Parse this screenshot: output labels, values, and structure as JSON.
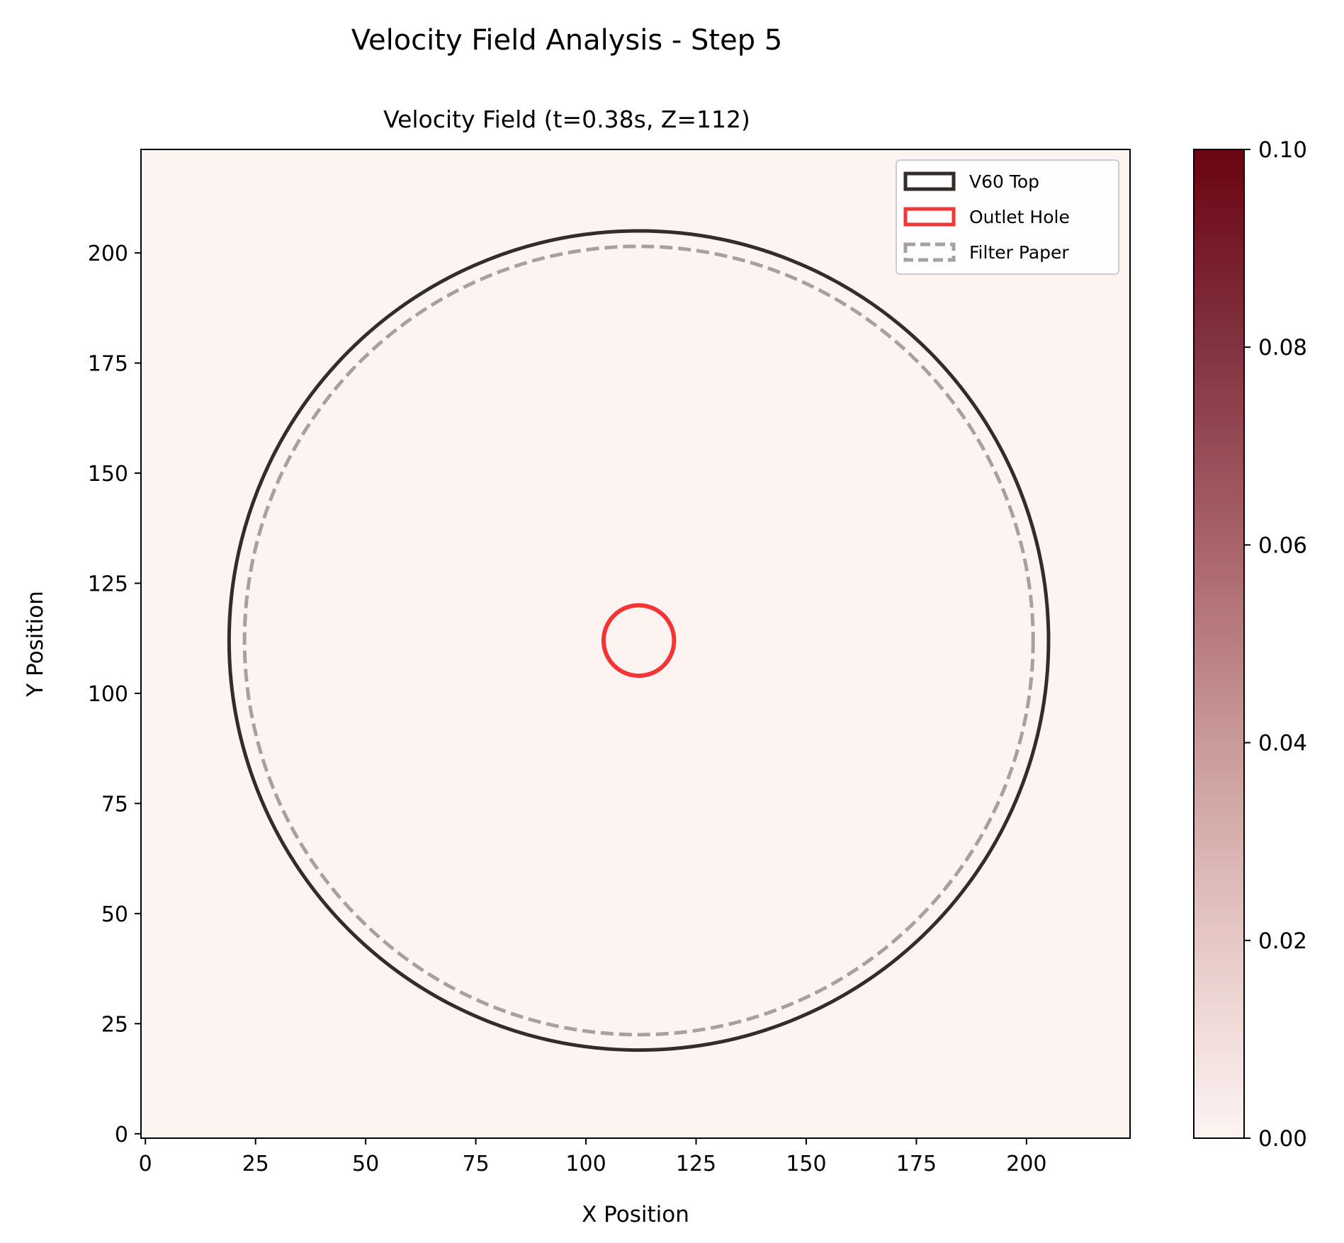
{
  "figure_title": "Velocity Field Analysis - Step 5",
  "chart_data": {
    "type": "heatmap",
    "title": "Velocity Field (t=0.38s, Z=112)",
    "xlabel": "X Position",
    "ylabel": "Y Position",
    "xlim": [
      -1,
      223.5
    ],
    "ylim": [
      -1,
      223.5
    ],
    "xticks": [
      0,
      25,
      50,
      75,
      100,
      125,
      150,
      175,
      200
    ],
    "yticks": [
      0,
      25,
      50,
      75,
      100,
      125,
      150,
      175,
      200
    ],
    "grid": false,
    "field": {
      "value": 0.0,
      "description": "uniform field at minimum value"
    },
    "colorbar": {
      "range": [
        0.0,
        0.1
      ],
      "ticks": [
        "0.00",
        "0.02",
        "0.04",
        "0.06",
        "0.08",
        "0.10"
      ],
      "colors": [
        "#fdf4f2",
        "#e6c8c5",
        "#c28f8f",
        "#9b5059",
        "#7b1f2a",
        "#6a0412"
      ]
    },
    "field_color": "#fdf4f2",
    "overlays": [
      {
        "name": "V60 Top",
        "type": "circle",
        "center": [
          112,
          112
        ],
        "radius": 93,
        "color": "#322c2b",
        "style": "solid"
      },
      {
        "name": "Outlet Hole",
        "type": "circle",
        "center": [
          112,
          112
        ],
        "radius": 8,
        "color": "#f53535",
        "style": "solid"
      },
      {
        "name": "Filter Paper",
        "type": "circle",
        "center": [
          112,
          112
        ],
        "radius": 89.5,
        "color": "#a6a09e",
        "style": "dashed"
      }
    ],
    "legend": {
      "placement": "top-right",
      "entries": [
        "V60 Top",
        "Outlet Hole",
        "Filter Paper"
      ]
    }
  }
}
